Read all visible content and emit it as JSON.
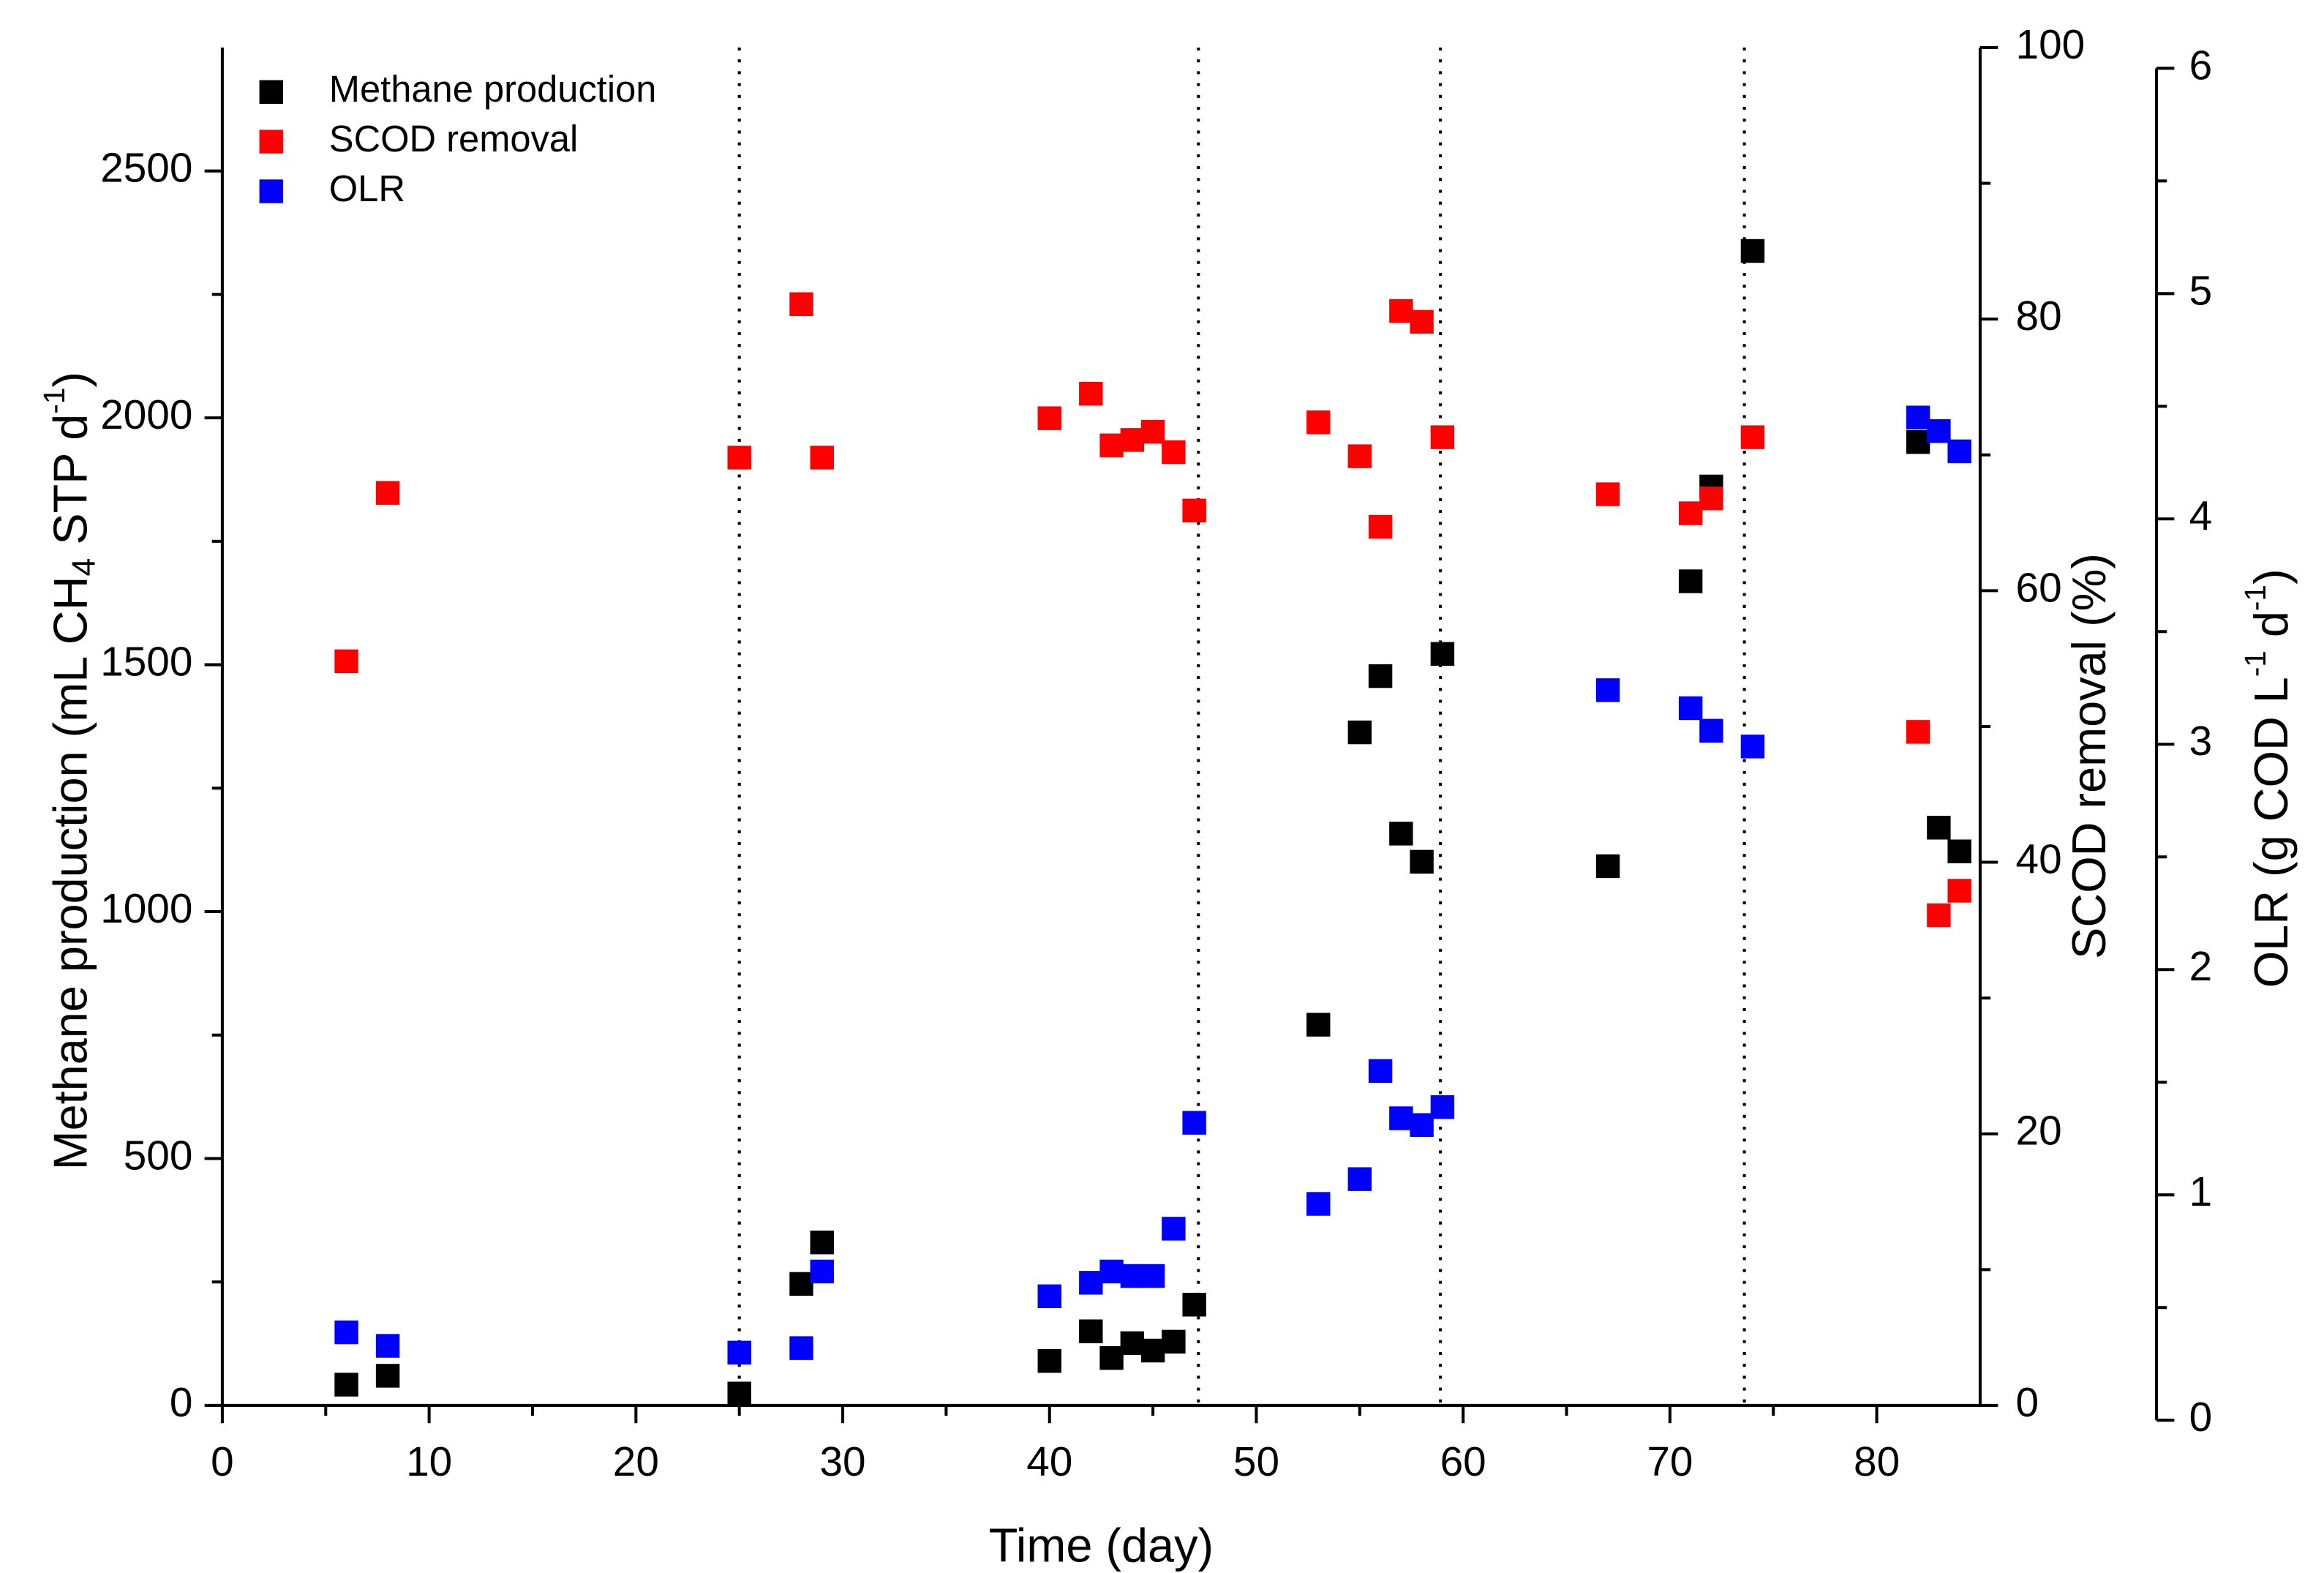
{
  "chart_data": {
    "type": "scatter",
    "xlabel": "Time (day)",
    "ylabel": [
      "Methane production (mL CH",
      "4",
      " STP d",
      "-1",
      ")"
    ],
    "y2label": "SCOD removal (%)",
    "y3label": [
      "OLR (g COD L",
      "-1",
      " d",
      "-1",
      ")"
    ],
    "xlim": [
      0,
      85
    ],
    "xticks": [
      0,
      10,
      20,
      30,
      40,
      50,
      60,
      70,
      80
    ],
    "ylim": [
      0,
      2750
    ],
    "yticks": [
      0,
      500,
      1000,
      1500,
      2000,
      2500
    ],
    "y2lim": [
      0,
      100
    ],
    "y2ticks": [
      0,
      20,
      40,
      60,
      80,
      100
    ],
    "y3lim": [
      0,
      6
    ],
    "y3ticks": [
      0,
      1,
      2,
      3,
      4,
      5,
      6
    ],
    "vlines": [
      25,
      47.2,
      58.9,
      73.6
    ],
    "legend": "upper left",
    "x": [
      6,
      8,
      25,
      28,
      29,
      40,
      42,
      43,
      44,
      45,
      46,
      47,
      53,
      55,
      56,
      57,
      58,
      59,
      67,
      71,
      72,
      74,
      82,
      83,
      84
    ],
    "series": [
      {
        "name": "Methane production",
        "color": "#000000",
        "axis": "y",
        "values": [
          42,
          60,
          24,
          246,
          330,
          90,
          150,
          96,
          126,
          111,
          129,
          204,
          771,
          1363,
          1477,
          1158,
          1101,
          1522,
          1092,
          1669,
          1861,
          2338,
          1951,
          1170,
          1122
        ]
      },
      {
        "name": "SCOD removal",
        "color": "#ff0000",
        "axis": "y2",
        "values": [
          54.8,
          67.2,
          69.8,
          81.1,
          69.8,
          72.7,
          74.5,
          70.7,
          71.1,
          71.7,
          70.2,
          65.9,
          72.4,
          69.9,
          64.7,
          80.6,
          79.8,
          71.3,
          67.1,
          65.7,
          66.8,
          71.3,
          49.6,
          36.1,
          37.9
        ]
      },
      {
        "name": "OLR",
        "color": "#0000ff",
        "axis": "y3",
        "values": [
          0.39,
          0.33,
          0.3,
          0.32,
          0.66,
          0.55,
          0.61,
          0.66,
          0.64,
          0.64,
          0.85,
          1.32,
          0.96,
          1.07,
          1.55,
          1.34,
          1.31,
          1.39,
          3.24,
          3.16,
          3.06,
          2.99,
          4.45,
          4.39,
          4.3
        ]
      }
    ]
  }
}
